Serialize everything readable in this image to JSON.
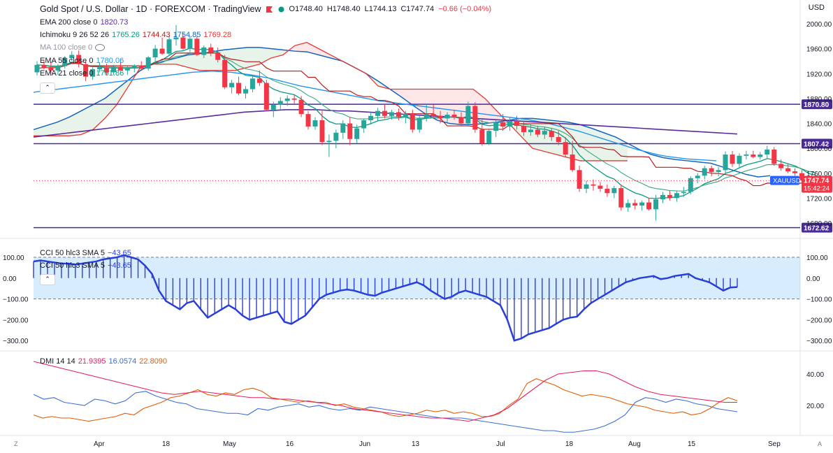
{
  "header": {
    "title": "Gold Spot / U.S. Dollar · 1D · FOREXCOM · TradingView",
    "open": "O1748.40",
    "high": "H1748.40",
    "low": "L1744.13",
    "close": "C1747.74",
    "change": "−0.66 (−0.04%)",
    "currency": "USD"
  },
  "indicators": {
    "ema200": {
      "name": "EMA 200 close 0",
      "value": "1820.73"
    },
    "ichimoku": {
      "name": "Ichimoku 9 26 52 26",
      "v1": "1765.26",
      "v2": "1744.43",
      "v3": "1754.85",
      "v4": "1769.28"
    },
    "ma100": {
      "name": "MA 100 close 0"
    },
    "ema55": {
      "name": "EMA 55 close 0",
      "value": "1780.06"
    },
    "ema21": {
      "name": "EMA 21 close 0",
      "value": "1761.86"
    },
    "cci": {
      "name": "CCI 50 hlc3 SMA 5",
      "value": "−43.65"
    },
    "dmi": {
      "name": "DMI 14 14",
      "v1": "21.9395",
      "v2": "16.0574",
      "v3": "22.8090"
    }
  },
  "colors": {
    "up": "#26a69a",
    "down": "#f23645",
    "ema200": "#5b2c9e",
    "ema55": "#2196f3",
    "ema21": "#089981",
    "kijun": "#b71c1c",
    "spanA": "#1565c0",
    "spanB": "#e53935",
    "hline": "#4a2a9a",
    "cci": "#2a3fd8",
    "dmi_plus": "#3a6fd8",
    "dmi_minus": "#e65c00",
    "adx": "#e91e63"
  },
  "chart_data": {
    "type": "candlestick",
    "price_axis": {
      "ticks": [
        2000,
        1960,
        1920,
        1880,
        1840,
        1800,
        1760,
        1720,
        1680
      ],
      "labels": [
        "2000.00",
        "1960.00",
        "1920.00",
        "1880.00",
        "1840.00",
        "1800.00",
        "1760.00",
        "1720.00",
        "1680.00"
      ]
    },
    "x_axis": {
      "labels": [
        "Apr",
        "18",
        "May",
        "16",
        "Jun",
        "13",
        "Jul",
        "18",
        "Aug",
        "15",
        "Sep"
      ]
    },
    "horizontal_lines": [
      {
        "value": 1870.8,
        "label": "1870.80"
      },
      {
        "value": 1807.42,
        "label": "1807.42"
      },
      {
        "value": 1672.62,
        "label": "1672.62"
      }
    ],
    "last_price": {
      "label": "XAUUSD",
      "value": "1747.74",
      "time": "15:42:24"
    },
    "candles": [
      {
        "o": 1922,
        "h": 1940,
        "l": 1917,
        "c": 1934
      },
      {
        "o": 1934,
        "h": 1942,
        "l": 1927,
        "c": 1930
      },
      {
        "o": 1930,
        "h": 1938,
        "l": 1920,
        "c": 1925
      },
      {
        "o": 1925,
        "h": 1935,
        "l": 1918,
        "c": 1932
      },
      {
        "o": 1932,
        "h": 1948,
        "l": 1928,
        "c": 1945
      },
      {
        "o": 1945,
        "h": 1956,
        "l": 1940,
        "c": 1950
      },
      {
        "o": 1950,
        "h": 1957,
        "l": 1930,
        "c": 1935
      },
      {
        "o": 1935,
        "h": 1940,
        "l": 1908,
        "c": 1915
      },
      {
        "o": 1915,
        "h": 1930,
        "l": 1910,
        "c": 1927
      },
      {
        "o": 1927,
        "h": 1938,
        "l": 1922,
        "c": 1930
      },
      {
        "o": 1930,
        "h": 1936,
        "l": 1918,
        "c": 1922
      },
      {
        "o": 1922,
        "h": 1934,
        "l": 1918,
        "c": 1931
      },
      {
        "o": 1931,
        "h": 1942,
        "l": 1925,
        "c": 1925
      },
      {
        "o": 1925,
        "h": 1932,
        "l": 1918,
        "c": 1928
      },
      {
        "o": 1928,
        "h": 1935,
        "l": 1922,
        "c": 1933
      },
      {
        "o": 1933,
        "h": 1940,
        "l": 1926,
        "c": 1928
      },
      {
        "o": 1928,
        "h": 1948,
        "l": 1925,
        "c": 1946
      },
      {
        "o": 1946,
        "h": 1966,
        "l": 1940,
        "c": 1960
      },
      {
        "o": 1960,
        "h": 1978,
        "l": 1950,
        "c": 1952
      },
      {
        "o": 1952,
        "h": 1980,
        "l": 1948,
        "c": 1975
      },
      {
        "o": 1975,
        "h": 1998,
        "l": 1965,
        "c": 1978
      },
      {
        "o": 1978,
        "h": 1985,
        "l": 1958,
        "c": 1960
      },
      {
        "o": 1960,
        "h": 1980,
        "l": 1952,
        "c": 1976
      },
      {
        "o": 1976,
        "h": 1980,
        "l": 1948,
        "c": 1950
      },
      {
        "o": 1950,
        "h": 1965,
        "l": 1945,
        "c": 1962
      },
      {
        "o": 1962,
        "h": 1968,
        "l": 1948,
        "c": 1954
      },
      {
        "o": 1954,
        "h": 1962,
        "l": 1938,
        "c": 1942
      },
      {
        "o": 1942,
        "h": 1950,
        "l": 1895,
        "c": 1898
      },
      {
        "o": 1898,
        "h": 1910,
        "l": 1888,
        "c": 1905
      },
      {
        "o": 1905,
        "h": 1915,
        "l": 1885,
        "c": 1888
      },
      {
        "o": 1888,
        "h": 1900,
        "l": 1880,
        "c": 1895
      },
      {
        "o": 1895,
        "h": 1918,
        "l": 1890,
        "c": 1912
      },
      {
        "o": 1912,
        "h": 1925,
        "l": 1900,
        "c": 1905
      },
      {
        "o": 1905,
        "h": 1910,
        "l": 1860,
        "c": 1862
      },
      {
        "o": 1862,
        "h": 1875,
        "l": 1850,
        "c": 1870
      },
      {
        "o": 1870,
        "h": 1882,
        "l": 1862,
        "c": 1876
      },
      {
        "o": 1876,
        "h": 1885,
        "l": 1868,
        "c": 1880
      },
      {
        "o": 1880,
        "h": 1886,
        "l": 1870,
        "c": 1878
      },
      {
        "o": 1878,
        "h": 1884,
        "l": 1850,
        "c": 1855
      },
      {
        "o": 1855,
        "h": 1860,
        "l": 1830,
        "c": 1835
      },
      {
        "o": 1835,
        "h": 1850,
        "l": 1830,
        "c": 1845
      },
      {
        "o": 1845,
        "h": 1860,
        "l": 1805,
        "c": 1810
      },
      {
        "o": 1810,
        "h": 1822,
        "l": 1786,
        "c": 1812
      },
      {
        "o": 1812,
        "h": 1830,
        "l": 1800,
        "c": 1825
      },
      {
        "o": 1825,
        "h": 1845,
        "l": 1815,
        "c": 1840
      },
      {
        "o": 1840,
        "h": 1850,
        "l": 1805,
        "c": 1815
      },
      {
        "o": 1815,
        "h": 1838,
        "l": 1808,
        "c": 1832
      },
      {
        "o": 1832,
        "h": 1848,
        "l": 1825,
        "c": 1845
      },
      {
        "o": 1845,
        "h": 1858,
        "l": 1838,
        "c": 1852
      },
      {
        "o": 1852,
        "h": 1865,
        "l": 1843,
        "c": 1860
      },
      {
        "o": 1860,
        "h": 1870,
        "l": 1848,
        "c": 1852
      },
      {
        "o": 1852,
        "h": 1862,
        "l": 1846,
        "c": 1858
      },
      {
        "o": 1858,
        "h": 1864,
        "l": 1845,
        "c": 1850
      },
      {
        "o": 1850,
        "h": 1860,
        "l": 1840,
        "c": 1855
      },
      {
        "o": 1855,
        "h": 1862,
        "l": 1825,
        "c": 1830
      },
      {
        "o": 1830,
        "h": 1852,
        "l": 1825,
        "c": 1848
      },
      {
        "o": 1848,
        "h": 1872,
        "l": 1843,
        "c": 1855
      },
      {
        "o": 1855,
        "h": 1870,
        "l": 1848,
        "c": 1852
      },
      {
        "o": 1852,
        "h": 1860,
        "l": 1840,
        "c": 1848
      },
      {
        "o": 1848,
        "h": 1858,
        "l": 1842,
        "c": 1854
      },
      {
        "o": 1854,
        "h": 1862,
        "l": 1846,
        "c": 1850
      },
      {
        "o": 1850,
        "h": 1858,
        "l": 1836,
        "c": 1840
      },
      {
        "o": 1840,
        "h": 1875,
        "l": 1835,
        "c": 1868
      },
      {
        "o": 1868,
        "h": 1874,
        "l": 1825,
        "c": 1830
      },
      {
        "o": 1830,
        "h": 1846,
        "l": 1804,
        "c": 1808
      },
      {
        "o": 1808,
        "h": 1832,
        "l": 1805,
        "c": 1828
      },
      {
        "o": 1828,
        "h": 1845,
        "l": 1818,
        "c": 1842
      },
      {
        "o": 1842,
        "h": 1855,
        "l": 1828,
        "c": 1835
      },
      {
        "o": 1835,
        "h": 1850,
        "l": 1828,
        "c": 1844
      },
      {
        "o": 1844,
        "h": 1852,
        "l": 1830,
        "c": 1836
      },
      {
        "o": 1836,
        "h": 1842,
        "l": 1820,
        "c": 1826
      },
      {
        "o": 1826,
        "h": 1840,
        "l": 1820,
        "c": 1830
      },
      {
        "o": 1830,
        "h": 1836,
        "l": 1818,
        "c": 1822
      },
      {
        "o": 1822,
        "h": 1835,
        "l": 1815,
        "c": 1828
      },
      {
        "o": 1828,
        "h": 1832,
        "l": 1812,
        "c": 1818
      },
      {
        "o": 1818,
        "h": 1828,
        "l": 1805,
        "c": 1810
      },
      {
        "o": 1810,
        "h": 1818,
        "l": 1785,
        "c": 1790
      },
      {
        "o": 1790,
        "h": 1812,
        "l": 1762,
        "c": 1765
      },
      {
        "o": 1765,
        "h": 1772,
        "l": 1730,
        "c": 1735
      },
      {
        "o": 1735,
        "h": 1748,
        "l": 1728,
        "c": 1742
      },
      {
        "o": 1742,
        "h": 1750,
        "l": 1732,
        "c": 1740
      },
      {
        "o": 1740,
        "h": 1746,
        "l": 1730,
        "c": 1735
      },
      {
        "o": 1735,
        "h": 1742,
        "l": 1722,
        "c": 1728
      },
      {
        "o": 1728,
        "h": 1740,
        "l": 1720,
        "c": 1736
      },
      {
        "o": 1736,
        "h": 1742,
        "l": 1700,
        "c": 1705
      },
      {
        "o": 1705,
        "h": 1718,
        "l": 1698,
        "c": 1712
      },
      {
        "o": 1712,
        "h": 1718,
        "l": 1702,
        "c": 1708
      },
      {
        "o": 1708,
        "h": 1716,
        "l": 1700,
        "c": 1713
      },
      {
        "o": 1713,
        "h": 1720,
        "l": 1700,
        "c": 1702
      },
      {
        "o": 1702,
        "h": 1725,
        "l": 1684,
        "c": 1718
      },
      {
        "o": 1718,
        "h": 1730,
        "l": 1712,
        "c": 1725
      },
      {
        "o": 1725,
        "h": 1732,
        "l": 1716,
        "c": 1720
      },
      {
        "o": 1720,
        "h": 1732,
        "l": 1714,
        "c": 1728
      },
      {
        "o": 1728,
        "h": 1738,
        "l": 1722,
        "c": 1730
      },
      {
        "o": 1730,
        "h": 1755,
        "l": 1726,
        "c": 1752
      },
      {
        "o": 1752,
        "h": 1760,
        "l": 1744,
        "c": 1756
      },
      {
        "o": 1756,
        "h": 1772,
        "l": 1750,
        "c": 1768
      },
      {
        "o": 1768,
        "h": 1772,
        "l": 1755,
        "c": 1762
      },
      {
        "o": 1762,
        "h": 1770,
        "l": 1755,
        "c": 1765
      },
      {
        "o": 1765,
        "h": 1795,
        "l": 1760,
        "c": 1790
      },
      {
        "o": 1790,
        "h": 1796,
        "l": 1770,
        "c": 1775
      },
      {
        "o": 1775,
        "h": 1792,
        "l": 1770,
        "c": 1788
      },
      {
        "o": 1788,
        "h": 1796,
        "l": 1782,
        "c": 1790
      },
      {
        "o": 1790,
        "h": 1796,
        "l": 1784,
        "c": 1786
      },
      {
        "o": 1786,
        "h": 1794,
        "l": 1782,
        "c": 1790
      },
      {
        "o": 1790,
        "h": 1804,
        "l": 1784,
        "c": 1798
      },
      {
        "o": 1798,
        "h": 1802,
        "l": 1772,
        "c": 1775
      },
      {
        "o": 1775,
        "h": 1782,
        "l": 1764,
        "c": 1768
      },
      {
        "o": 1768,
        "h": 1775,
        "l": 1760,
        "c": 1763
      },
      {
        "o": 1763,
        "h": 1768,
        "l": 1756,
        "c": 1760
      },
      {
        "o": 1760,
        "h": 1765,
        "l": 1735,
        "c": 1748
      },
      {
        "o": 1748,
        "h": 1752,
        "l": 1728,
        "c": 1735
      },
      {
        "o": 1735,
        "h": 1750,
        "l": 1730,
        "c": 1748
      }
    ],
    "ema200": [
      1818,
      1820,
      1822,
      1824,
      1826,
      1828,
      1830,
      1832,
      1834,
      1836,
      1838,
      1840,
      1842,
      1844,
      1846,
      1848,
      1850,
      1852,
      1854,
      1856,
      1858,
      1859,
      1860,
      1861,
      1862,
      1862,
      1862,
      1862,
      1861,
      1860,
      1860,
      1859,
      1858,
      1857,
      1856,
      1855,
      1854,
      1853,
      1852,
      1851,
      1850,
      1849,
      1848,
      1847,
      1846,
      1845,
      1844,
      1843,
      1842,
      1841,
      1840,
      1839,
      1838,
      1837,
      1836,
      1835,
      1834,
      1833,
      1832,
      1831,
      1830,
      1829,
      1828,
      1827,
      1826,
      1825,
      1824,
      1823
    ],
    "ema55": [
      1890,
      1892,
      1894,
      1896,
      1898,
      1900,
      1902,
      1904,
      1906,
      1908,
      1910,
      1912,
      1914,
      1916,
      1918,
      1920,
      1922,
      1923,
      1924,
      1923,
      1922,
      1920,
      1918,
      1915,
      1912,
      1908,
      1904,
      1900,
      1897,
      1894,
      1891,
      1888,
      1885,
      1882,
      1879,
      1876,
      1874,
      1872,
      1870,
      1868,
      1866,
      1864,
      1862,
      1860,
      1858,
      1856,
      1854,
      1852,
      1850,
      1848,
      1846,
      1843,
      1840,
      1836,
      1832,
      1828,
      1823,
      1818,
      1813,
      1808,
      1803,
      1798,
      1794,
      1790,
      1787,
      1785,
      1783,
      1782,
      1781,
      1780
    ],
    "ichimoku_span_a": [
      1830,
      1836,
      1842,
      1850,
      1860,
      1870,
      1880,
      1895,
      1910,
      1925,
      1935,
      1940,
      1945,
      1950,
      1952,
      1955,
      1958,
      1960,
      1962,
      1962,
      1960,
      1958,
      1956,
      1955,
      1950,
      1945,
      1940,
      1930,
      1920,
      1908,
      1895,
      1882,
      1868,
      1855,
      1845,
      1840,
      1838,
      1838,
      1840,
      1842,
      1845,
      1848,
      1848,
      1846,
      1844,
      1842,
      1838,
      1832,
      1825,
      1818,
      1808,
      1798,
      1790,
      1785,
      1782,
      1780,
      1778,
      1776,
      1770,
      1764,
      1758,
      1754,
      1756
    ],
    "ichimoku_span_b": [
      1820,
      1820,
      1820,
      1820,
      1822,
      1830,
      1848,
      1870,
      1900,
      1930,
      1935,
      1935,
      1935,
      1930,
      1925,
      1925,
      1925,
      1925,
      1930,
      1935,
      1945,
      1950,
      1965,
      1970,
      1960,
      1950,
      1940,
      1930,
      1920,
      1900,
      1895,
      1895,
      1895,
      1895,
      1895,
      1895,
      1895,
      1895,
      1880,
      1860,
      1840,
      1820,
      1800,
      1795,
      1790,
      1785,
      1780,
      1780,
      1780,
      1780,
      1780
    ],
    "cci": {
      "ticks": [
        100,
        0,
        -100,
        -200,
        -300
      ],
      "labels": [
        "100.00",
        "0.00",
        "−100.00",
        "−200.00",
        "−300.00"
      ],
      "values": [
        80,
        85,
        80,
        75,
        70,
        70,
        65,
        70,
        75,
        80,
        90,
        95,
        100,
        110,
        100,
        90,
        60,
        20,
        -60,
        -110,
        -130,
        -150,
        -120,
        -110,
        -150,
        -190,
        -170,
        -150,
        -130,
        -150,
        -180,
        -200,
        -190,
        -180,
        -170,
        -160,
        -210,
        -220,
        -200,
        -180,
        -140,
        -100,
        -80,
        -70,
        -60,
        -55,
        -60,
        -70,
        -80,
        -85,
        -70,
        -60,
        -50,
        -40,
        -30,
        -20,
        -35,
        -60,
        -80,
        -100,
        -90,
        -70,
        -60,
        -70,
        -80,
        -90,
        -110,
        -130,
        -200,
        -300,
        -290,
        -270,
        -260,
        -250,
        -240,
        -220,
        -200,
        -190,
        -185,
        -150,
        -120,
        -100,
        -80,
        -60,
        -40,
        -20,
        -10,
        0,
        5,
        10,
        -5,
        0,
        10,
        15,
        20,
        0,
        -10,
        -20,
        -40,
        -60,
        -45,
        -43
      ]
    },
    "dmi": {
      "ticks": [
        40,
        20
      ],
      "labels": [
        "40.00",
        "20.00"
      ],
      "plus": [
        27,
        24,
        25,
        22,
        21,
        20,
        24,
        23,
        21,
        23,
        28,
        29,
        26,
        24,
        22,
        21,
        18,
        17,
        16,
        15,
        15,
        14,
        18,
        17,
        19,
        20,
        21,
        19,
        20,
        18,
        17,
        18,
        17,
        19,
        18,
        17,
        16,
        15,
        14,
        13,
        12,
        12,
        12,
        11,
        10,
        9,
        8,
        7,
        6,
        5,
        4,
        4,
        3,
        3,
        4,
        5,
        7,
        10,
        14,
        22,
        25,
        24,
        22,
        24,
        23,
        21,
        20,
        18,
        17,
        16
      ],
      "minus": [
        14,
        12,
        13,
        12,
        12,
        11,
        10,
        11,
        12,
        13,
        15,
        14,
        18,
        20,
        22,
        25,
        26,
        28,
        30,
        27,
        26,
        28,
        27,
        30,
        31,
        29,
        25,
        24,
        23,
        22,
        23,
        22,
        22,
        20,
        21,
        19,
        18,
        17,
        16,
        14,
        13,
        14,
        15,
        17,
        16,
        17,
        15,
        16,
        15,
        13,
        13,
        15,
        20,
        24,
        34,
        37,
        35,
        33,
        30,
        28,
        26,
        27,
        26,
        25,
        23,
        21,
        20,
        19,
        17,
        16,
        15,
        16,
        14,
        15,
        18,
        22,
        25,
        23
      ],
      "adx": [
        48,
        46,
        44,
        42,
        40,
        38,
        36,
        34,
        32,
        30,
        28,
        27,
        28,
        29,
        28,
        27,
        26,
        25,
        25,
        24,
        24,
        23,
        22,
        21,
        20,
        18,
        17,
        16,
        15,
        14,
        13,
        12,
        12,
        11,
        10,
        12,
        14,
        18,
        24,
        30,
        36,
        40,
        41,
        42,
        42,
        40,
        36,
        32,
        29,
        27,
        26,
        25,
        24,
        23,
        22,
        22
      ]
    }
  }
}
